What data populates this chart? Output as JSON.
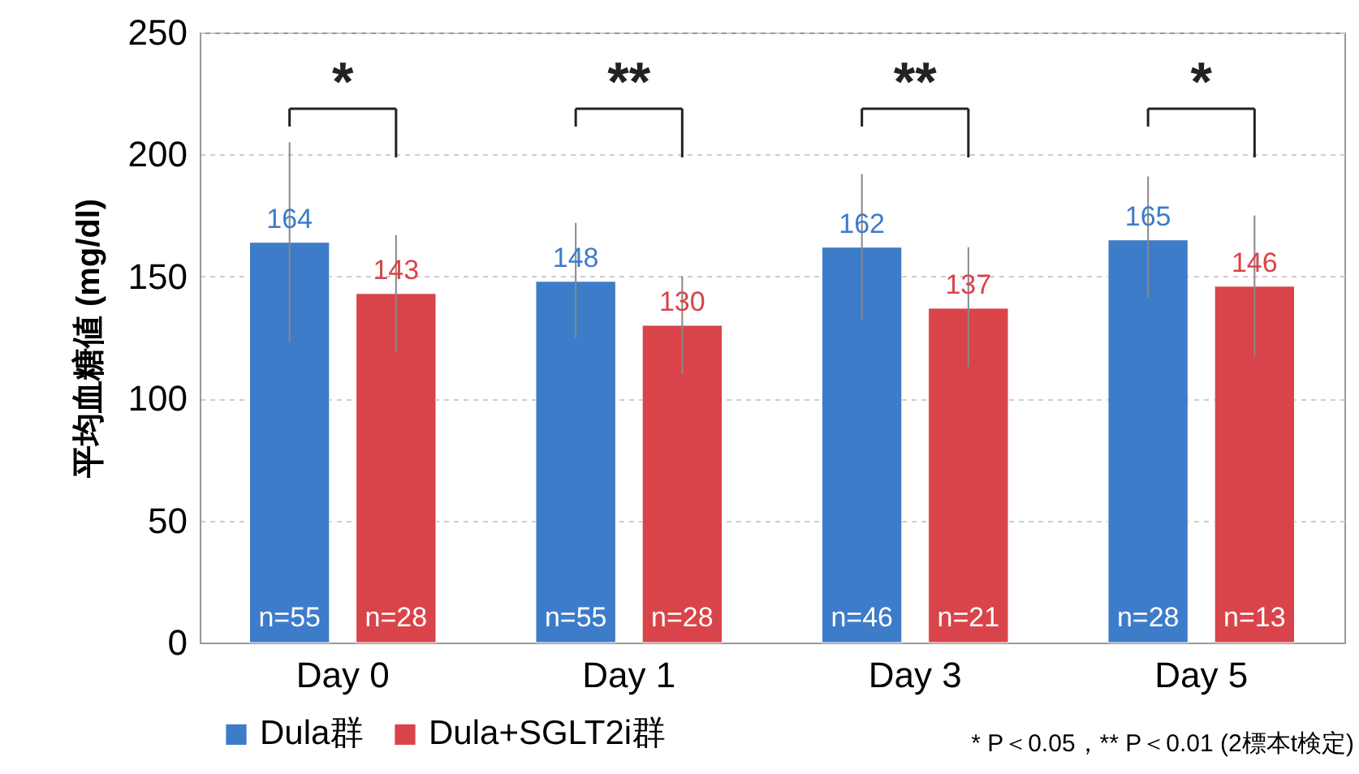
{
  "chart_data": {
    "type": "bar",
    "ylabel": "平均血糖値 (mg/dl)",
    "categories": [
      "Day 0",
      "Day 1",
      "Day 3",
      "Day 5"
    ],
    "series": [
      {
        "name": "Dula群",
        "color": "#3d7cc9",
        "values": [
          164,
          148,
          162,
          165
        ],
        "errors": [
          [
            123,
            205
          ],
          [
            125,
            172
          ],
          [
            132,
            192
          ],
          [
            141,
            191
          ]
        ]
      },
      {
        "name": "Dula+SGLT2i群",
        "color": "#d9444a",
        "values": [
          143,
          130,
          137,
          146
        ],
        "errors": [
          [
            119,
            167
          ],
          [
            110,
            150
          ],
          [
            113,
            162
          ],
          [
            117,
            175
          ]
        ]
      }
    ],
    "ylim": [
      0,
      250
    ],
    "yticks": [
      0,
      50,
      100,
      150,
      200,
      250
    ],
    "grid": "y",
    "legend": "bottom",
    "data_labels": true,
    "annotations": [
      "*",
      "**",
      "**",
      "*",
      "n=55",
      "n=28",
      "n=55",
      "n=28",
      "n=46",
      "n=21",
      "n=28",
      "n=13",
      "* P＜0.05，** P＜0.01 (2標本t検定)"
    ]
  }
}
